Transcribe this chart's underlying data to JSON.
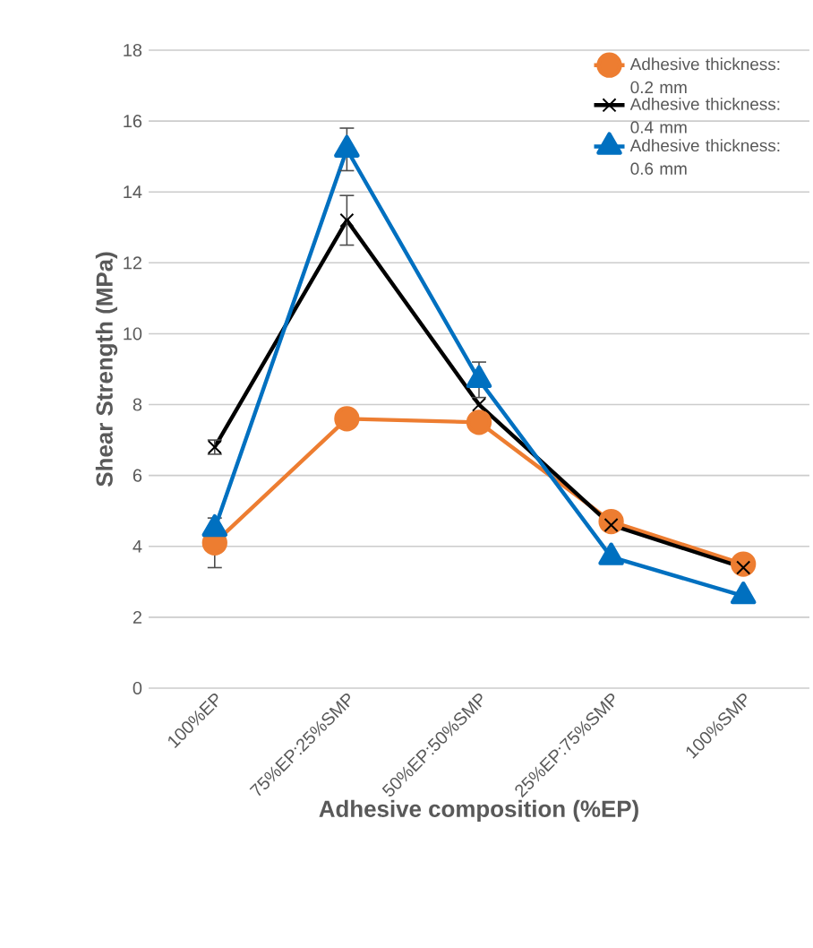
{
  "chart_data": {
    "type": "line",
    "xlabel": "Adhesive composition (%EP)",
    "ylabel": "Shear Strength (MPa)",
    "categories": [
      "100%EP",
      "75%EP:25%SMP",
      "50%EP:50%SMP",
      "25%EP:75%SMP",
      "100%SMP"
    ],
    "series": [
      {
        "name": "Adhesive thickness: 0.2 mm",
        "color": "#ed7d31",
        "marker": "circle",
        "values": [
          4.1,
          7.6,
          7.5,
          4.7,
          3.5
        ],
        "errors": [
          0.7,
          null,
          null,
          null,
          null
        ]
      },
      {
        "name": "Adhesive thickness: 0.4 mm",
        "color": "#000000",
        "marker": "cross",
        "values": [
          6.8,
          13.2,
          8.0,
          4.6,
          3.4
        ],
        "errors": [
          0.2,
          0.7,
          null,
          null,
          null
        ]
      },
      {
        "name": "Adhesive thickness: 0.6 mm",
        "color": "#0070c0",
        "marker": "triangle",
        "values": [
          4.5,
          15.2,
          8.7,
          3.7,
          2.6
        ],
        "errors": [
          null,
          0.6,
          0.5,
          null,
          null
        ]
      }
    ],
    "ylim": [
      0,
      18
    ],
    "yticks": [
      0,
      2,
      4,
      6,
      8,
      10,
      12,
      14,
      16,
      18
    ],
    "grid": "y",
    "legend": "top right"
  }
}
